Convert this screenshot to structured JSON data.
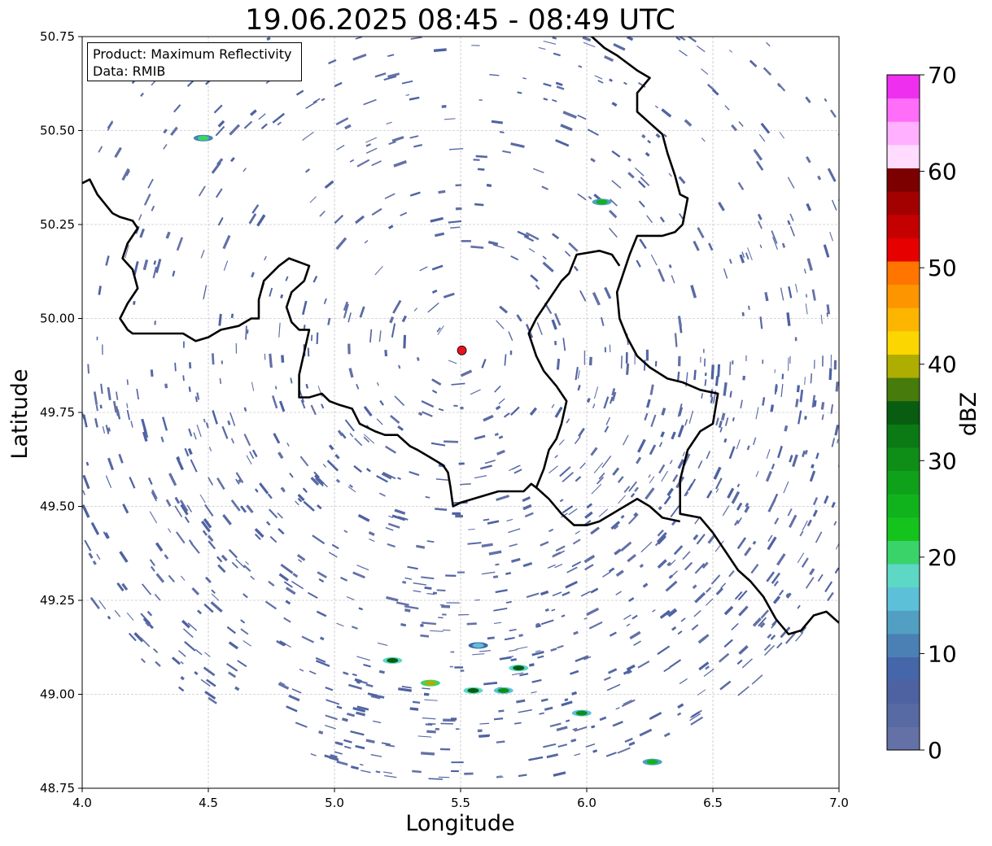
{
  "title": "19.06.2025 08:45 - 08:49 UTC",
  "info_box": {
    "product_line": "Product: Maximum Reflectivity",
    "data_line": "Data: RMIB"
  },
  "chart_data": {
    "type": "heatmap",
    "title": "19.06.2025 08:45 - 08:49 UTC",
    "xlabel": "Longitude",
    "ylabel": "Latitude",
    "xlim": [
      4.0,
      7.0
    ],
    "ylim": [
      48.75,
      50.75
    ],
    "xticks": [
      "4.0",
      "4.5",
      "5.0",
      "5.5",
      "6.0",
      "6.5",
      "7.0"
    ],
    "yticks": [
      "48.75",
      "49.00",
      "49.25",
      "49.50",
      "49.75",
      "50.00",
      "50.25",
      "50.50",
      "50.75"
    ],
    "grid": true,
    "radar_site": {
      "lon": 5.505,
      "lat": 49.915,
      "color": "#e8141b"
    },
    "colorbar": {
      "label": "dBZ",
      "min": 0,
      "max": 70,
      "ticks": [
        "0",
        "10",
        "20",
        "30",
        "40",
        "50",
        "60",
        "70"
      ],
      "colors": [
        "#6471a6",
        "#586aa3",
        "#4e62a2",
        "#4566a8",
        "#4b80b4",
        "#519fc3",
        "#5cc0d8",
        "#5cd8c4",
        "#3ad36a",
        "#14c41c",
        "#11b31d",
        "#10a11a",
        "#0e8e17",
        "#0b7a14",
        "#085d10",
        "#477b0b",
        "#adae00",
        "#fcd600",
        "#fcb500",
        "#fd9500",
        "#ff7500",
        "#e60000",
        "#c50000",
        "#a30000",
        "#7c0000",
        "#ffdcff",
        "#ffb0ff",
        "#ff6df9",
        "#ef2ff0"
      ]
    },
    "echoes": {
      "dominant_dbz_range": [
        0,
        10
      ],
      "dominant_color": "#586aa3",
      "stronger_cells": [
        {
          "lon": 5.23,
          "lat": 49.09,
          "dbz": 35
        },
        {
          "lon": 5.38,
          "lat": 49.03,
          "dbz": 40
        },
        {
          "lon": 5.55,
          "lat": 49.01,
          "dbz": 35
        },
        {
          "lon": 5.67,
          "lat": 49.01,
          "dbz": 30
        },
        {
          "lon": 5.73,
          "lat": 49.07,
          "dbz": 35
        },
        {
          "lon": 5.57,
          "lat": 49.13,
          "dbz": 15
        },
        {
          "lon": 5.98,
          "lat": 48.95,
          "dbz": 30
        },
        {
          "lon": 6.26,
          "lat": 48.82,
          "dbz": 25
        },
        {
          "lon": 6.06,
          "lat": 50.31,
          "dbz": 25
        },
        {
          "lon": 4.48,
          "lat": 50.48,
          "dbz": 20
        }
      ]
    },
    "borders": [
      {
        "name": "border-west",
        "points": [
          [
            4.0,
            50.36
          ],
          [
            4.03,
            50.37
          ],
          [
            4.06,
            50.33
          ],
          [
            4.12,
            50.28
          ],
          [
            4.15,
            50.27
          ],
          [
            4.2,
            50.26
          ],
          [
            4.22,
            50.24
          ],
          [
            4.18,
            50.2
          ],
          [
            4.16,
            50.16
          ],
          [
            4.2,
            50.13
          ],
          [
            4.22,
            50.08
          ],
          [
            4.18,
            50.04
          ],
          [
            4.15,
            50.0
          ],
          [
            4.18,
            49.97
          ],
          [
            4.2,
            49.96
          ],
          [
            4.3,
            49.96
          ],
          [
            4.4,
            49.96
          ],
          [
            4.45,
            49.94
          ],
          [
            4.5,
            49.95
          ],
          [
            4.55,
            49.97
          ],
          [
            4.62,
            49.98
          ],
          [
            4.67,
            50.0
          ],
          [
            4.7,
            50.0
          ],
          [
            4.7,
            50.05
          ],
          [
            4.72,
            50.1
          ],
          [
            4.78,
            50.14
          ],
          [
            4.82,
            50.16
          ],
          [
            4.86,
            50.15
          ],
          [
            4.9,
            50.14
          ],
          [
            4.88,
            50.1
          ],
          [
            4.83,
            50.07
          ],
          [
            4.81,
            50.03
          ],
          [
            4.83,
            49.99
          ],
          [
            4.86,
            49.97
          ],
          [
            4.9,
            49.97
          ],
          [
            4.88,
            49.91
          ],
          [
            4.86,
            49.85
          ],
          [
            4.86,
            49.79
          ],
          [
            4.9,
            49.79
          ],
          [
            4.95,
            49.8
          ],
          [
            4.98,
            49.78
          ],
          [
            5.02,
            49.77
          ],
          [
            5.07,
            49.76
          ],
          [
            5.1,
            49.72
          ],
          [
            5.13,
            49.71
          ],
          [
            5.16,
            49.7
          ],
          [
            5.2,
            49.69
          ],
          [
            5.25,
            49.69
          ],
          [
            5.3,
            49.66
          ],
          [
            5.33,
            49.65
          ],
          [
            5.38,
            49.63
          ],
          [
            5.43,
            49.61
          ],
          [
            5.45,
            49.59
          ],
          [
            5.46,
            49.55
          ],
          [
            5.47,
            49.5
          ],
          [
            5.5,
            49.51
          ],
          [
            5.55,
            49.52
          ],
          [
            5.6,
            49.53
          ],
          [
            5.65,
            49.54
          ],
          [
            5.7,
            49.54
          ],
          [
            5.75,
            49.54
          ],
          [
            5.78,
            49.56
          ],
          [
            5.8,
            49.55
          ],
          [
            5.83,
            49.6
          ],
          [
            5.85,
            49.65
          ],
          [
            5.88,
            49.68
          ],
          [
            5.9,
            49.72
          ],
          [
            5.92,
            49.78
          ],
          [
            5.88,
            49.82
          ],
          [
            5.83,
            49.86
          ],
          [
            5.8,
            49.9
          ],
          [
            5.77,
            49.96
          ],
          [
            5.8,
            50.0
          ],
          [
            5.85,
            50.05
          ],
          [
            5.9,
            50.1
          ],
          [
            5.93,
            50.12
          ],
          [
            5.96,
            50.17
          ],
          [
            6.05,
            50.18
          ],
          [
            6.1,
            50.17
          ],
          [
            6.13,
            50.14
          ]
        ]
      },
      {
        "name": "border-east",
        "points": [
          [
            6.02,
            50.75
          ],
          [
            6.07,
            50.72
          ],
          [
            6.12,
            50.7
          ],
          [
            6.2,
            50.66
          ],
          [
            6.25,
            50.64
          ],
          [
            6.2,
            50.6
          ],
          [
            6.2,
            50.55
          ],
          [
            6.25,
            50.52
          ],
          [
            6.3,
            50.49
          ],
          [
            6.32,
            50.44
          ],
          [
            6.35,
            50.38
          ],
          [
            6.37,
            50.33
          ],
          [
            6.4,
            50.32
          ],
          [
            6.38,
            50.25
          ],
          [
            6.35,
            50.23
          ],
          [
            6.3,
            50.22
          ],
          [
            6.2,
            50.22
          ],
          [
            6.17,
            50.17
          ],
          [
            6.15,
            50.13
          ],
          [
            6.12,
            50.07
          ],
          [
            6.13,
            50.0
          ],
          [
            6.16,
            49.95
          ],
          [
            6.2,
            49.9
          ],
          [
            6.25,
            49.87
          ],
          [
            6.32,
            49.84
          ],
          [
            6.38,
            49.83
          ],
          [
            6.45,
            49.81
          ],
          [
            6.52,
            49.8
          ],
          [
            6.5,
            49.72
          ],
          [
            6.45,
            49.7
          ],
          [
            6.4,
            49.65
          ],
          [
            6.37,
            49.57
          ],
          [
            6.37,
            49.48
          ],
          [
            6.45,
            49.47
          ],
          [
            6.5,
            49.43
          ],
          [
            6.55,
            49.38
          ],
          [
            6.6,
            49.33
          ],
          [
            6.65,
            49.3
          ],
          [
            6.7,
            49.26
          ],
          [
            6.75,
            49.2
          ],
          [
            6.8,
            49.16
          ],
          [
            6.85,
            49.17
          ],
          [
            6.9,
            49.21
          ],
          [
            6.95,
            49.22
          ],
          [
            7.0,
            49.19
          ]
        ]
      },
      {
        "name": "border-middle",
        "points": [
          [
            5.8,
            49.55
          ],
          [
            5.85,
            49.52
          ],
          [
            5.9,
            49.48
          ],
          [
            5.95,
            49.45
          ],
          [
            6.0,
            49.45
          ],
          [
            6.05,
            49.46
          ],
          [
            6.1,
            49.48
          ],
          [
            6.15,
            49.5
          ],
          [
            6.2,
            49.52
          ],
          [
            6.25,
            49.5
          ],
          [
            6.3,
            49.47
          ],
          [
            6.37,
            49.46
          ]
        ]
      }
    ]
  }
}
